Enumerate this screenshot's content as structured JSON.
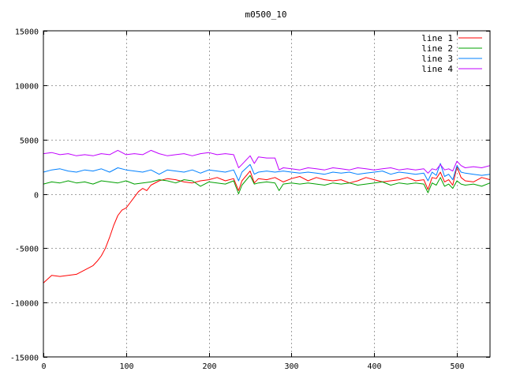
{
  "chart_data": {
    "type": "line",
    "title": "m0500_10",
    "xlabel": "",
    "ylabel": "",
    "xlim": [
      0,
      540
    ],
    "ylim": [
      -15000,
      15000
    ],
    "x_ticks": [
      "0",
      "100",
      "200",
      "300",
      "400",
      "500"
    ],
    "y_ticks": [
      "15000",
      "10000",
      "5000",
      "0",
      "-5000",
      "-10000",
      "-15000"
    ],
    "grid": true,
    "legend_position": "top-right",
    "series": [
      {
        "name": "line 1",
        "color": "#ff0000",
        "x": [
          0,
          10,
          20,
          30,
          40,
          50,
          60,
          65,
          70,
          75,
          80,
          85,
          90,
          95,
          100,
          105,
          110,
          115,
          120,
          125,
          130,
          140,
          150,
          160,
          170,
          180,
          190,
          200,
          210,
          220,
          230,
          236,
          240,
          250,
          255,
          260,
          270,
          280,
          290,
          300,
          310,
          320,
          330,
          340,
          350,
          360,
          370,
          380,
          390,
          400,
          410,
          420,
          430,
          440,
          450,
          460,
          465,
          470,
          475,
          480,
          485,
          490,
          495,
          500,
          505,
          510,
          520,
          530,
          540
        ],
        "y": [
          -8200,
          -7500,
          -7600,
          -7500,
          -7400,
          -7000,
          -6600,
          -6200,
          -5700,
          -5000,
          -4000,
          -2900,
          -2000,
          -1500,
          -1300,
          -800,
          -300,
          200,
          500,
          300,
          800,
          1200,
          1400,
          1300,
          1100,
          1000,
          1200,
          1300,
          1500,
          1200,
          1400,
          300,
          1200,
          2100,
          1000,
          1400,
          1300,
          1500,
          1100,
          1400,
          1600,
          1200,
          1500,
          1300,
          1200,
          1300,
          1000,
          1200,
          1500,
          1300,
          1100,
          1200,
          1300,
          1500,
          1200,
          1300,
          400,
          1500,
          1400,
          2000,
          1100,
          1300,
          800,
          2500,
          1500,
          1200,
          1100,
          1500,
          1300
        ]
      },
      {
        "name": "line 2",
        "color": "#00a000",
        "x": [
          0,
          10,
          20,
          30,
          40,
          50,
          60,
          70,
          80,
          90,
          100,
          110,
          120,
          130,
          140,
          150,
          160,
          170,
          180,
          190,
          200,
          210,
          220,
          230,
          236,
          240,
          250,
          255,
          260,
          270,
          280,
          285,
          290,
          300,
          310,
          320,
          330,
          340,
          350,
          360,
          370,
          380,
          390,
          400,
          410,
          420,
          430,
          440,
          450,
          460,
          465,
          470,
          475,
          480,
          485,
          490,
          495,
          500,
          505,
          510,
          520,
          530,
          540
        ],
        "y": [
          900,
          1100,
          1000,
          1200,
          1000,
          1100,
          900,
          1200,
          1100,
          1000,
          1200,
          900,
          1000,
          1100,
          1300,
          1200,
          1000,
          1300,
          1200,
          700,
          1100,
          1000,
          900,
          1200,
          0,
          800,
          1700,
          900,
          1000,
          1100,
          1000,
          300,
          900,
          1000,
          900,
          1000,
          900,
          800,
          1000,
          900,
          1000,
          800,
          900,
          1000,
          1100,
          800,
          1000,
          900,
          1000,
          900,
          100,
          1000,
          800,
          1500,
          700,
          900,
          500,
          1200,
          900,
          800,
          900,
          700,
          1000
        ]
      },
      {
        "name": "line 3",
        "color": "#0080ff",
        "x": [
          0,
          10,
          20,
          30,
          40,
          50,
          60,
          70,
          80,
          90,
          100,
          110,
          120,
          130,
          140,
          150,
          160,
          170,
          180,
          190,
          200,
          210,
          220,
          230,
          236,
          240,
          250,
          255,
          260,
          270,
          280,
          290,
          300,
          310,
          320,
          330,
          340,
          350,
          360,
          370,
          380,
          390,
          400,
          410,
          420,
          430,
          440,
          450,
          460,
          465,
          470,
          475,
          480,
          485,
          490,
          495,
          500,
          505,
          510,
          520,
          530,
          540
        ],
        "y": [
          2000,
          2200,
          2300,
          2100,
          2000,
          2200,
          2100,
          2300,
          2000,
          2400,
          2200,
          2100,
          2000,
          2200,
          1800,
          2200,
          2100,
          2000,
          2200,
          1900,
          2200,
          2100,
          2000,
          2200,
          1200,
          2000,
          2700,
          1800,
          2000,
          2100,
          2000,
          2100,
          2000,
          1900,
          2000,
          1900,
          1800,
          2000,
          1900,
          2000,
          1800,
          1900,
          2000,
          2100,
          1800,
          2000,
          1900,
          1800,
          1900,
          1200,
          2000,
          1700,
          2800,
          1600,
          1800,
          1300,
          2600,
          2000,
          1900,
          1800,
          1700,
          1800
        ]
      },
      {
        "name": "line 4",
        "color": "#c000ff",
        "x": [
          0,
          10,
          20,
          30,
          40,
          50,
          60,
          70,
          80,
          90,
          100,
          110,
          120,
          130,
          140,
          150,
          160,
          170,
          180,
          190,
          200,
          210,
          220,
          230,
          236,
          240,
          250,
          255,
          260,
          270,
          280,
          285,
          290,
          300,
          310,
          320,
          330,
          340,
          350,
          360,
          370,
          380,
          390,
          400,
          410,
          420,
          430,
          440,
          450,
          460,
          465,
          470,
          475,
          480,
          485,
          490,
          495,
          500,
          505,
          510,
          520,
          530,
          540
        ],
        "y": [
          3700,
          3800,
          3600,
          3700,
          3500,
          3600,
          3500,
          3700,
          3600,
          4000,
          3600,
          3700,
          3600,
          4000,
          3700,
          3500,
          3600,
          3700,
          3500,
          3700,
          3800,
          3600,
          3700,
          3600,
          2400,
          2700,
          3500,
          2800,
          3400,
          3300,
          3300,
          2200,
          2400,
          2300,
          2200,
          2400,
          2300,
          2200,
          2400,
          2300,
          2200,
          2400,
          2300,
          2200,
          2300,
          2400,
          2200,
          2300,
          2200,
          2300,
          1900,
          2300,
          2200,
          2700,
          2200,
          2300,
          2100,
          3000,
          2600,
          2400,
          2500,
          2400,
          2600
        ]
      }
    ]
  }
}
